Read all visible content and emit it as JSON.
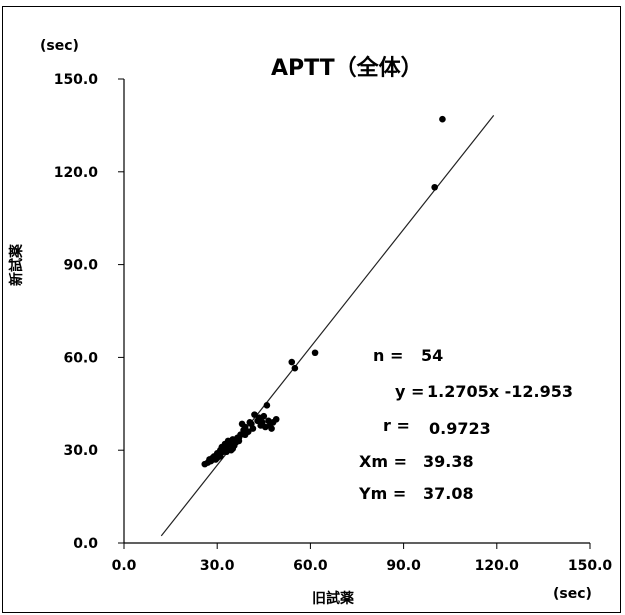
{
  "chart_data": {
    "type": "scatter",
    "title": "APTT（全体）",
    "xlabel": "旧試薬",
    "ylabel": "新試薬",
    "x_unit": "(sec)",
    "y_unit": "(sec)",
    "xlim": [
      0,
      150
    ],
    "ylim": [
      0,
      150
    ],
    "xticks": [
      "0.0",
      "30.0",
      "60.0",
      "90.0",
      "120.0",
      "150.0"
    ],
    "yticks": [
      "0.0",
      "30.0",
      "60.0",
      "90.0",
      "120.0",
      "150.0"
    ],
    "grid": false,
    "regression_line": {
      "slope": 1.2705,
      "intercept": -12.953,
      "x_range": [
        12,
        119
      ]
    },
    "points": [
      [
        26,
        25.5
      ],
      [
        27,
        26
      ],
      [
        27.5,
        27
      ],
      [
        28,
        26.5
      ],
      [
        28.5,
        27.5
      ],
      [
        29,
        28
      ],
      [
        29.5,
        27
      ],
      [
        30,
        29
      ],
      [
        30.5,
        28.5
      ],
      [
        31,
        30
      ],
      [
        31.5,
        31
      ],
      [
        32,
        29.5
      ],
      [
        32.5,
        32
      ],
      [
        33,
        31
      ],
      [
        33.5,
        33
      ],
      [
        34,
        32
      ],
      [
        34.5,
        30
      ],
      [
        35,
        33.5
      ],
      [
        35.5,
        31.5
      ],
      [
        36,
        32.5
      ],
      [
        36.5,
        34
      ],
      [
        37,
        33
      ],
      [
        37.5,
        35
      ],
      [
        38,
        38.5
      ],
      [
        38.5,
        36.5
      ],
      [
        39,
        37.5
      ],
      [
        40,
        36
      ],
      [
        41,
        38.5
      ],
      [
        41.5,
        37
      ],
      [
        42,
        41.5
      ],
      [
        43,
        39.5
      ],
      [
        43.5,
        40.5
      ],
      [
        44,
        38
      ],
      [
        44.5,
        39
      ],
      [
        45,
        41
      ],
      [
        45.5,
        37.5
      ],
      [
        46,
        44.5
      ],
      [
        46.5,
        39.5
      ],
      [
        47,
        38
      ],
      [
        47.5,
        37
      ],
      [
        48,
        39
      ],
      [
        49,
        40
      ],
      [
        30,
        27.5
      ],
      [
        31,
        28
      ],
      [
        33,
        29.5
      ],
      [
        35,
        30.5
      ],
      [
        37,
        34
      ],
      [
        39,
        35
      ],
      [
        40.5,
        39
      ],
      [
        54,
        58.5
      ],
      [
        55,
        56.5
      ],
      [
        61.5,
        61.5
      ],
      [
        100,
        115
      ],
      [
        102.5,
        137
      ]
    ],
    "stats": {
      "n_label": "n =",
      "n_value": "54",
      "eq_label": "y =",
      "eq_value": "1.2705x  -12.953",
      "r_label": "r =",
      "r_value": "0.9723",
      "xm_label": "Xm =",
      "xm_value": "39.38",
      "ym_label": "Ym =",
      "ym_value": "37.08"
    }
  }
}
